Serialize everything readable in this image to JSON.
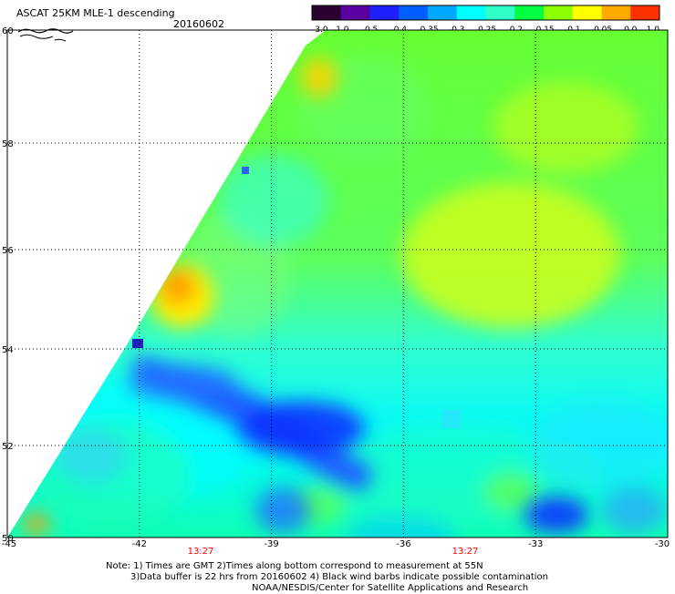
{
  "header": {
    "title": "ASCAT 25KM MLE-1 descending",
    "date": "20160602"
  },
  "colorbar": {
    "tick_labels": [
      "-3.0",
      "-1.0",
      "-0.5",
      "-0.4",
      "-0.35",
      "-0.3",
      "-0.25",
      "-0.2",
      "-0.15",
      "-0.1",
      "-0.05",
      "0.0",
      "1.0"
    ],
    "colors": [
      "#2a0030",
      "#5a00a0",
      "#2020ff",
      "#0060ff",
      "#00a8ff",
      "#00ffff",
      "#30ffc8",
      "#00ff40",
      "#8cff00",
      "#ffff00",
      "#ffaa00",
      "#ff3000"
    ]
  },
  "map": {
    "x_ticks": [
      "-45",
      "-42",
      "-39",
      "-36",
      "-33",
      "-30"
    ],
    "y_ticks": [
      "60",
      "58",
      "56",
      "54",
      "52",
      "50"
    ],
    "time_labels": [
      "13:27",
      "13:27"
    ],
    "time_label_color": "#ff0000"
  },
  "footer": {
    "line1": "Note: 1) Times are GMT 2)Times along bottom correspond to measurement at 55N",
    "line2": "3)Data buffer is 22 hrs from 20160602 4) Black wind barbs indicate possible contamination",
    "line3": "NOAA/NESDIS/Center for Satellite Applications and Research"
  }
}
